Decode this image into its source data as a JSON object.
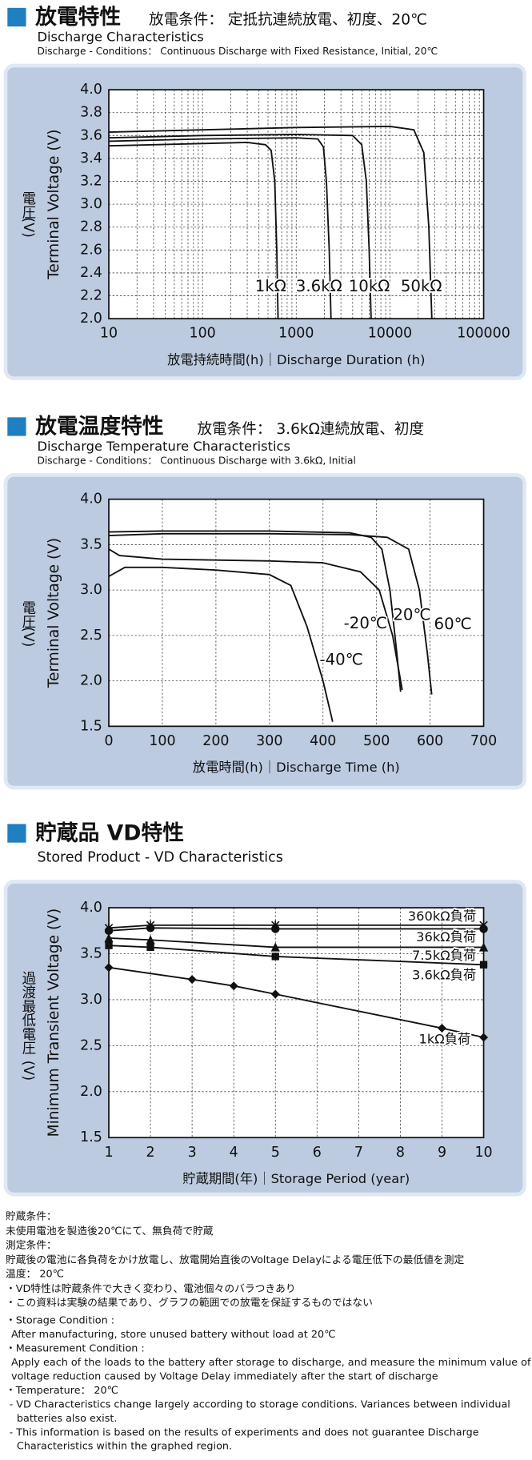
{
  "chart_data": [
    {
      "type": "line",
      "title": "放電特性",
      "subtitle": "放電条件： 定抵抗連続放電、初度、20℃",
      "title_en": "Discharge Characteristics",
      "subtitle_en": "Discharge - Conditions： Continuous Discharge with Fixed Resistance, Initial, 20℃",
      "x_label": "放電持続時間(h)｜Discharge Duration (h)",
      "y_label": [
        "電圧",
        "(V)"
      ],
      "y_label_en": "Terminal Voltage (V)",
      "x_log": true,
      "xlim": [
        10,
        100000
      ],
      "xticks": [
        10,
        100,
        1000,
        10000,
        100000
      ],
      "ylim": [
        2.0,
        4.0
      ],
      "yticks": [
        {
          "value": 2.0,
          "label": "2.0"
        },
        2.2,
        2.4,
        2.6,
        2.8,
        {
          "value": 3.0,
          "label": "3.0"
        },
        3.2,
        3.4,
        3.6,
        3.8,
        {
          "value": 4.0,
          "label": "4.0"
        }
      ],
      "grid": true,
      "minor_grid": true,
      "series": [
        {
          "name": "1kΩ",
          "color": "#111111",
          "x": [
            10,
            100,
            300,
            470,
            540,
            590,
            620,
            640
          ],
          "values": [
            3.51,
            3.53,
            3.54,
            3.52,
            3.47,
            3.2,
            2.6,
            2.0
          ]
        },
        {
          "name": "3.6kΩ",
          "color": "#111111",
          "x": [
            10,
            100,
            1000,
            1700,
            1950,
            2100,
            2250,
            2350
          ],
          "values": [
            3.55,
            3.57,
            3.58,
            3.57,
            3.5,
            3.2,
            2.6,
            2.0
          ]
        },
        {
          "name": "10kΩ",
          "color": "#111111",
          "x": [
            10,
            100,
            1000,
            4000,
            5000,
            5600,
            6000,
            6300
          ],
          "values": [
            3.58,
            3.6,
            3.61,
            3.6,
            3.52,
            3.2,
            2.6,
            2.0
          ]
        },
        {
          "name": "50kΩ",
          "color": "#111111",
          "x": [
            10,
            100,
            1000,
            10000,
            18000,
            23000,
            26000,
            28000
          ],
          "values": [
            3.63,
            3.65,
            3.67,
            3.68,
            3.65,
            3.45,
            2.8,
            2.0
          ]
        }
      ]
    },
    {
      "type": "line",
      "title": "放電温度特性",
      "subtitle": "放電条件： 3.6kΩ連続放電、初度",
      "title_en": "Discharge Temperature Characteristics",
      "subtitle_en": "Discharge - Conditions： Continuous Discharge with 3.6kΩ, Initial",
      "x_label": "放電時間(h)｜Discharge Time (h)",
      "y_label": [
        "電圧",
        "(V)"
      ],
      "y_label_en": "Terminal Voltage (V)",
      "x_log": false,
      "xlim": [
        0,
        700
      ],
      "xticks": [
        0,
        100,
        200,
        300,
        400,
        500,
        600,
        700
      ],
      "ylim": [
        1.5,
        4.0
      ],
      "yticks": [
        1.5,
        {
          "value": 2.0,
          "label": "2.0"
        },
        2.5,
        {
          "value": 3.0,
          "label": "3.0"
        },
        3.5,
        {
          "value": 4.0,
          "label": "4.0"
        }
      ],
      "grid": true,
      "minor_grid": false,
      "series": [
        {
          "name": "60℃",
          "color": "#111111",
          "x": [
            0,
            100,
            300,
            450,
            520,
            560,
            580,
            595,
            603
          ],
          "values": [
            3.6,
            3.62,
            3.62,
            3.61,
            3.58,
            3.45,
            3.0,
            2.3,
            1.85
          ]
        },
        {
          "name": "20℃",
          "color": "#111111",
          "x": [
            0,
            100,
            300,
            450,
            490,
            510,
            525,
            538,
            545
          ],
          "values": [
            3.64,
            3.65,
            3.65,
            3.63,
            3.58,
            3.45,
            3.0,
            2.3,
            1.88
          ]
        },
        {
          "name": "-20℃",
          "color": "#111111",
          "x": [
            0,
            20,
            100,
            300,
            400,
            470,
            505,
            530,
            548
          ],
          "values": [
            3.45,
            3.38,
            3.34,
            3.32,
            3.3,
            3.2,
            3.0,
            2.5,
            1.9
          ]
        },
        {
          "name": "-40℃",
          "color": "#111111",
          "x": [
            0,
            30,
            100,
            200,
            300,
            340,
            370,
            400,
            418
          ],
          "values": [
            3.15,
            3.25,
            3.25,
            3.22,
            3.17,
            3.05,
            2.6,
            2.0,
            1.55
          ]
        }
      ]
    },
    {
      "type": "line",
      "title": "貯蔵品 VD特性",
      "title_en": "Stored Product - VD Characteristics",
      "x_label": "貯蔵期間(年)｜Storage Period (year)",
      "y_label": [
        "過渡最低電圧",
        "(V)"
      ],
      "y_label_en": "Minimum Transient Voltage (V)",
      "x_log": false,
      "xlim": [
        1,
        10
      ],
      "xticks": [
        1,
        2,
        3,
        4,
        5,
        6,
        7,
        8,
        9,
        10
      ],
      "ylim": [
        1.5,
        4.0
      ],
      "yticks": [
        1.5,
        {
          "value": 2.0,
          "label": "2.0"
        },
        2.5,
        {
          "value": 3.0,
          "label": "3.0"
        },
        3.5,
        {
          "value": 4.0,
          "label": "4.0"
        }
      ],
      "grid": true,
      "minor_grid": false,
      "series": [
        {
          "name": "360kΩ負荷",
          "color": "#111111",
          "marker": "asterisk",
          "x": [
            1,
            2,
            5,
            10
          ],
          "values": [
            3.78,
            3.81,
            3.81,
            3.81
          ]
        },
        {
          "name": "36kΩ負荷",
          "color": "#111111",
          "marker": "circle",
          "x": [
            1,
            2,
            5,
            10
          ],
          "values": [
            3.75,
            3.78,
            3.77,
            3.77
          ]
        },
        {
          "name": "7.5kΩ負荷",
          "color": "#111111",
          "marker": "triangle",
          "x": [
            1,
            2,
            5,
            10
          ],
          "values": [
            3.67,
            3.65,
            3.57,
            3.57
          ]
        },
        {
          "name": "3.6kΩ負荷",
          "color": "#111111",
          "marker": "square",
          "x": [
            1,
            2,
            5,
            10
          ],
          "values": [
            3.59,
            3.57,
            3.47,
            3.38
          ]
        },
        {
          "name": "1kΩ負荷",
          "color": "#111111",
          "marker": "diamond",
          "x": [
            1,
            3,
            4,
            5,
            9,
            10
          ],
          "values": [
            3.35,
            3.22,
            3.15,
            3.06,
            2.69,
            2.59
          ]
        }
      ]
    }
  ],
  "notes": [
    "貯蔵条件：",
    "未使用電池を製造後20℃にて、無負荷で貯蔵",
    "測定条件：",
    "貯蔵後の電池に各負荷をかけ放電し、放電開始直後のVoltage Delayによる電圧低下の最低値を測定",
    "温度： 20℃",
    "・VD特性は貯蔵条件で大きく変わり、電池個々のバラつきあり",
    "・この資料は実験の結果であり、グラフの範囲での放電を保証するものではない",
    "・Storage Condition :",
    "After manufacturing, store unused battery without load at 20℃",
    "・Measurement Condition :",
    "Apply each of the loads to the battery after storage to discharge, and measure the minimum value of",
    "voltage reduction caused by Voltage Delay immediately after the start of discharge",
    "・Temperature： 20℃",
    "- VD Characteristics change largely according to storage conditions. Variances between individual",
    "batteries also exist.",
    "- This information is based on the results of experiments and does not guarantee Discharge",
    "Characteristics within the graphed region."
  ]
}
